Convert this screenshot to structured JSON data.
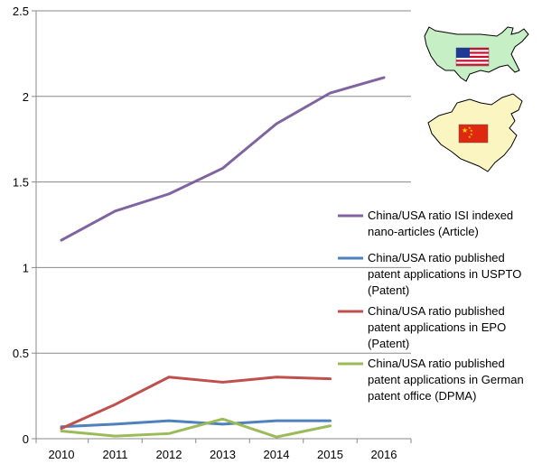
{
  "chart_data": {
    "type": "line",
    "title": "",
    "xlabel": "",
    "ylabel": "",
    "x": [
      "2010",
      "2011",
      "2012",
      "2013",
      "2014",
      "2015",
      "2016"
    ],
    "ylim": [
      0,
      2.5
    ],
    "yticks": [
      "0",
      "0.5",
      "1",
      "1.5",
      "2",
      "2.5"
    ],
    "grid": "horizontal",
    "legend_position": "right",
    "series": [
      {
        "name": "China/USA ratio ISI indexed nano-articles (Article)",
        "legend_lines": [
          "China/USA ratio ISI indexed",
          "nano-articles (Article)"
        ],
        "color": "#8064a2",
        "values": [
          1.16,
          1.33,
          1.43,
          1.58,
          1.84,
          2.02,
          2.11
        ]
      },
      {
        "name": "China/USA ratio published patent applications in USPTO (Patent)",
        "legend_lines": [
          "China/USA ratio published",
          "patent applications in USPTO",
          "(Patent)"
        ],
        "color": "#4f81bd",
        "values": [
          0.07,
          0.085,
          0.105,
          0.085,
          0.105,
          0.105,
          null
        ]
      },
      {
        "name": "China/USA ratio published patent applications in EPO (Patent)",
        "legend_lines": [
          "China/USA ratio published",
          "patent applications in EPO",
          "(Patent)"
        ],
        "color": "#c0504d",
        "values": [
          0.06,
          0.2,
          0.36,
          0.33,
          0.36,
          0.35,
          null
        ]
      },
      {
        "name": "China/USA ratio published patent applications in German patent office (DPMA)",
        "legend_lines": [
          "China/USA ratio published",
          "patent applications in German",
          "patent office (DPMA)"
        ],
        "color": "#9bbb59",
        "values": [
          0.045,
          0.015,
          0.03,
          0.115,
          0.01,
          0.075,
          null
        ]
      }
    ],
    "images": [
      {
        "name": "usa-map-with-flag",
        "map_color": "#c6efc6",
        "flag": "usa"
      },
      {
        "name": "china-map-with-flag",
        "map_color": "#fbf5c2",
        "flag": "china"
      }
    ]
  }
}
